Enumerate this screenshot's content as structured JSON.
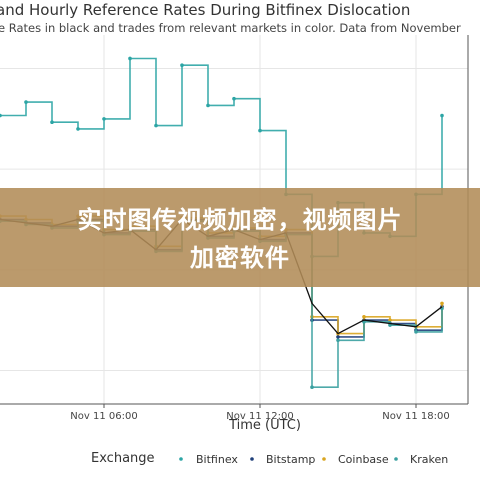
{
  "title": "and Hourly Reference Rates During Bitfinex Dislocation",
  "subtitle": "e Rates in black and trades from relevant markets in color. Data from November",
  "banner": {
    "line1": "实时图传视频加密，视频图片",
    "line2": "加密软件"
  },
  "chart_data": {
    "type": "scatter",
    "xlabel": "Time (UTC)",
    "x_ticks": [
      "Nov 11 06:00",
      "Nov 11 12:00",
      "Nov 11 18:00"
    ],
    "grid": true,
    "legend": {
      "title": "Exchange",
      "placement": "bottom",
      "entries": [
        {
          "name": "Bitfinex",
          "color": "#2ca5a5"
        },
        {
          "name": "Bitstamp",
          "color": "#1f3f7a"
        },
        {
          "name": "Coinbase",
          "color": "#d9a520"
        },
        {
          "name": "Kraken",
          "color": "#3aa0a0"
        }
      ]
    },
    "series": [
      {
        "name": "Bitfinex",
        "color": "#2ca5a5",
        "x": [
          "Nov 11 02:00",
          "Nov 11 03:00",
          "Nov 11 04:00",
          "Nov 11 05:00",
          "Nov 11 06:00",
          "Nov 11 07:00",
          "Nov 11 08:00",
          "Nov 11 09:00",
          "Nov 11 10:00",
          "Nov 11 11:00",
          "Nov 11 12:00",
          "Nov 11 13:00",
          "Nov 11 14:00",
          "Nov 11 15:00",
          "Nov 11 16:00",
          "Nov 11 17:00",
          "Nov 11 18:00",
          "Nov 11 19:00"
        ],
        "y": [
          92,
          100,
          88,
          84,
          90,
          126,
          86,
          122,
          98,
          102,
          83,
          45,
          8,
          40,
          22,
          20,
          45,
          92
        ]
      },
      {
        "name": "Bitstamp",
        "color": "#1f3f7a",
        "x": [
          "Nov 11 02:00",
          "Nov 11 03:00",
          "Nov 11 04:00",
          "Nov 11 05:00",
          "Nov 11 06:00",
          "Nov 11 07:00",
          "Nov 11 08:00",
          "Nov 11 09:00",
          "Nov 11 10:00",
          "Nov 11 11:00",
          "Nov 11 12:00",
          "Nov 11 13:00",
          "Nov 11 14:00",
          "Nov 11 15:00",
          "Nov 11 16:00",
          "Nov 11 17:00",
          "Nov 11 18:00",
          "Nov 11 19:00"
        ],
        "y": [
          30,
          28,
          26,
          30,
          22,
          24,
          12,
          30,
          20,
          24,
          18,
          22,
          -30,
          -40,
          -30,
          -32,
          -36,
          -22
        ]
      },
      {
        "name": "Coinbase",
        "color": "#d9a520",
        "x": [
          "Nov 11 02:00",
          "Nov 11 03:00",
          "Nov 11 04:00",
          "Nov 11 05:00",
          "Nov 11 06:00",
          "Nov 11 07:00",
          "Nov 11 08:00",
          "Nov 11 09:00",
          "Nov 11 10:00",
          "Nov 11 11:00",
          "Nov 11 12:00",
          "Nov 11 13:00",
          "Nov 11 14:00",
          "Nov 11 15:00",
          "Nov 11 16:00",
          "Nov 11 17:00",
          "Nov 11 18:00",
          "Nov 11 19:00"
        ],
        "y": [
          32,
          30,
          27,
          32,
          24,
          26,
          14,
          31,
          22,
          25,
          20,
          24,
          -28,
          -38,
          -28,
          -30,
          -34,
          -20
        ]
      },
      {
        "name": "Kraken",
        "color": "#3aa0a0",
        "x": [
          "Nov 11 02:00",
          "Nov 11 03:00",
          "Nov 11 04:00",
          "Nov 11 05:00",
          "Nov 11 06:00",
          "Nov 11 07:00",
          "Nov 11 08:00",
          "Nov 11 09:00",
          "Nov 11 10:00",
          "Nov 11 11:00",
          "Nov 11 12:00",
          "Nov 11 13:00",
          "Nov 11 14:00",
          "Nov 11 15:00",
          "Nov 11 16:00",
          "Nov 11 17:00",
          "Nov 11 18:00",
          "Nov 11 19:00"
        ],
        "y": [
          29,
          27,
          25,
          29,
          21,
          23,
          11,
          29,
          19,
          23,
          17,
          21,
          -70,
          -42,
          -31,
          -33,
          -37,
          -23
        ]
      }
    ],
    "reference": {
      "color": "#111111",
      "x": [
        "Nov 11 02:00",
        "Nov 11 03:00",
        "Nov 11 04:00",
        "Nov 11 05:00",
        "Nov 11 06:00",
        "Nov 11 07:00",
        "Nov 11 08:00",
        "Nov 11 09:00",
        "Nov 11 10:00",
        "Nov 11 11:00",
        "Nov 11 12:00",
        "Nov 11 13:00",
        "Nov 11 14:00",
        "Nov 11 15:00",
        "Nov 11 16:00",
        "Nov 11 17:00",
        "Nov 11 18:00",
        "Nov 11 19:00"
      ],
      "y": [
        30,
        28,
        26,
        30,
        22,
        24,
        12,
        30,
        20,
        24,
        18,
        22,
        -20,
        -38,
        -30,
        -32,
        -34,
        -22
      ]
    }
  }
}
